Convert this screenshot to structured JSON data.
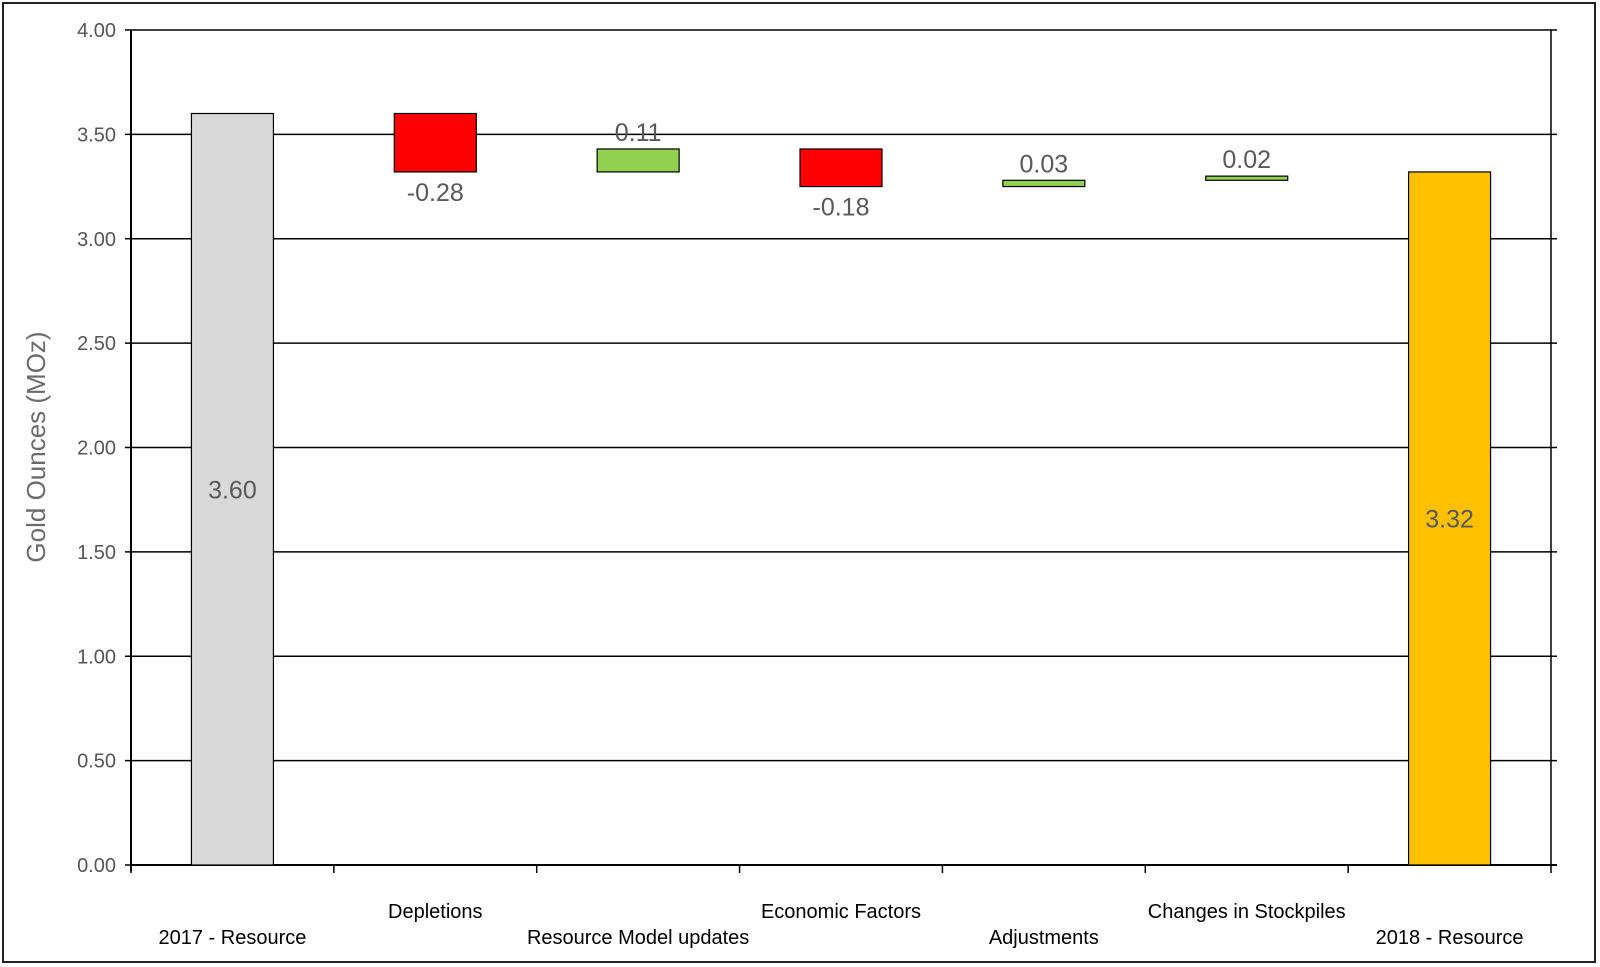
{
  "chart_data": {
    "type": "bar",
    "subtype": "waterfall",
    "title": "",
    "xlabel": "",
    "ylabel": "Gold Ounces (MOz)",
    "ylim": [
      0,
      4
    ],
    "yticks": [
      "0.00",
      "0.50",
      "1.00",
      "1.50",
      "2.00",
      "2.50",
      "3.00",
      "3.50",
      "4.00"
    ],
    "ytick_values": [
      0,
      0.5,
      1,
      1.5,
      2,
      2.5,
      3,
      3.5,
      4
    ],
    "grid": true,
    "legend": "none",
    "categories": [
      "2017 - Resource",
      "Depletions",
      "Resource Model updates",
      "Economic Factors",
      "Adjustments",
      "Changes in Stockpiles",
      "2018 - Resource"
    ],
    "bars": [
      {
        "category": "2017 - Resource",
        "kind": "total",
        "start": 0,
        "end": 3.6,
        "label": "3.60",
        "color": "#d9d9d9"
      },
      {
        "category": "Depletions",
        "kind": "decrease",
        "start": 3.6,
        "end": 3.32,
        "label": "-0.28",
        "color": "#ff0000"
      },
      {
        "category": "Resource Model updates",
        "kind": "increase",
        "start": 3.32,
        "end": 3.43,
        "label": "0.11",
        "color": "#92d050"
      },
      {
        "category": "Economic Factors",
        "kind": "decrease",
        "start": 3.43,
        "end": 3.25,
        "label": "-0.18",
        "color": "#ff0000"
      },
      {
        "category": "Adjustments",
        "kind": "increase",
        "start": 3.25,
        "end": 3.28,
        "label": "0.03",
        "color": "#92d050"
      },
      {
        "category": "Changes in Stockpiles",
        "kind": "increase",
        "start": 3.28,
        "end": 3.3,
        "label": "0.02",
        "color": "#92d050"
      },
      {
        "category": "2018 - Resource",
        "kind": "total",
        "start": 0,
        "end": 3.32,
        "label": "3.32",
        "color": "#ffc000"
      }
    ]
  }
}
